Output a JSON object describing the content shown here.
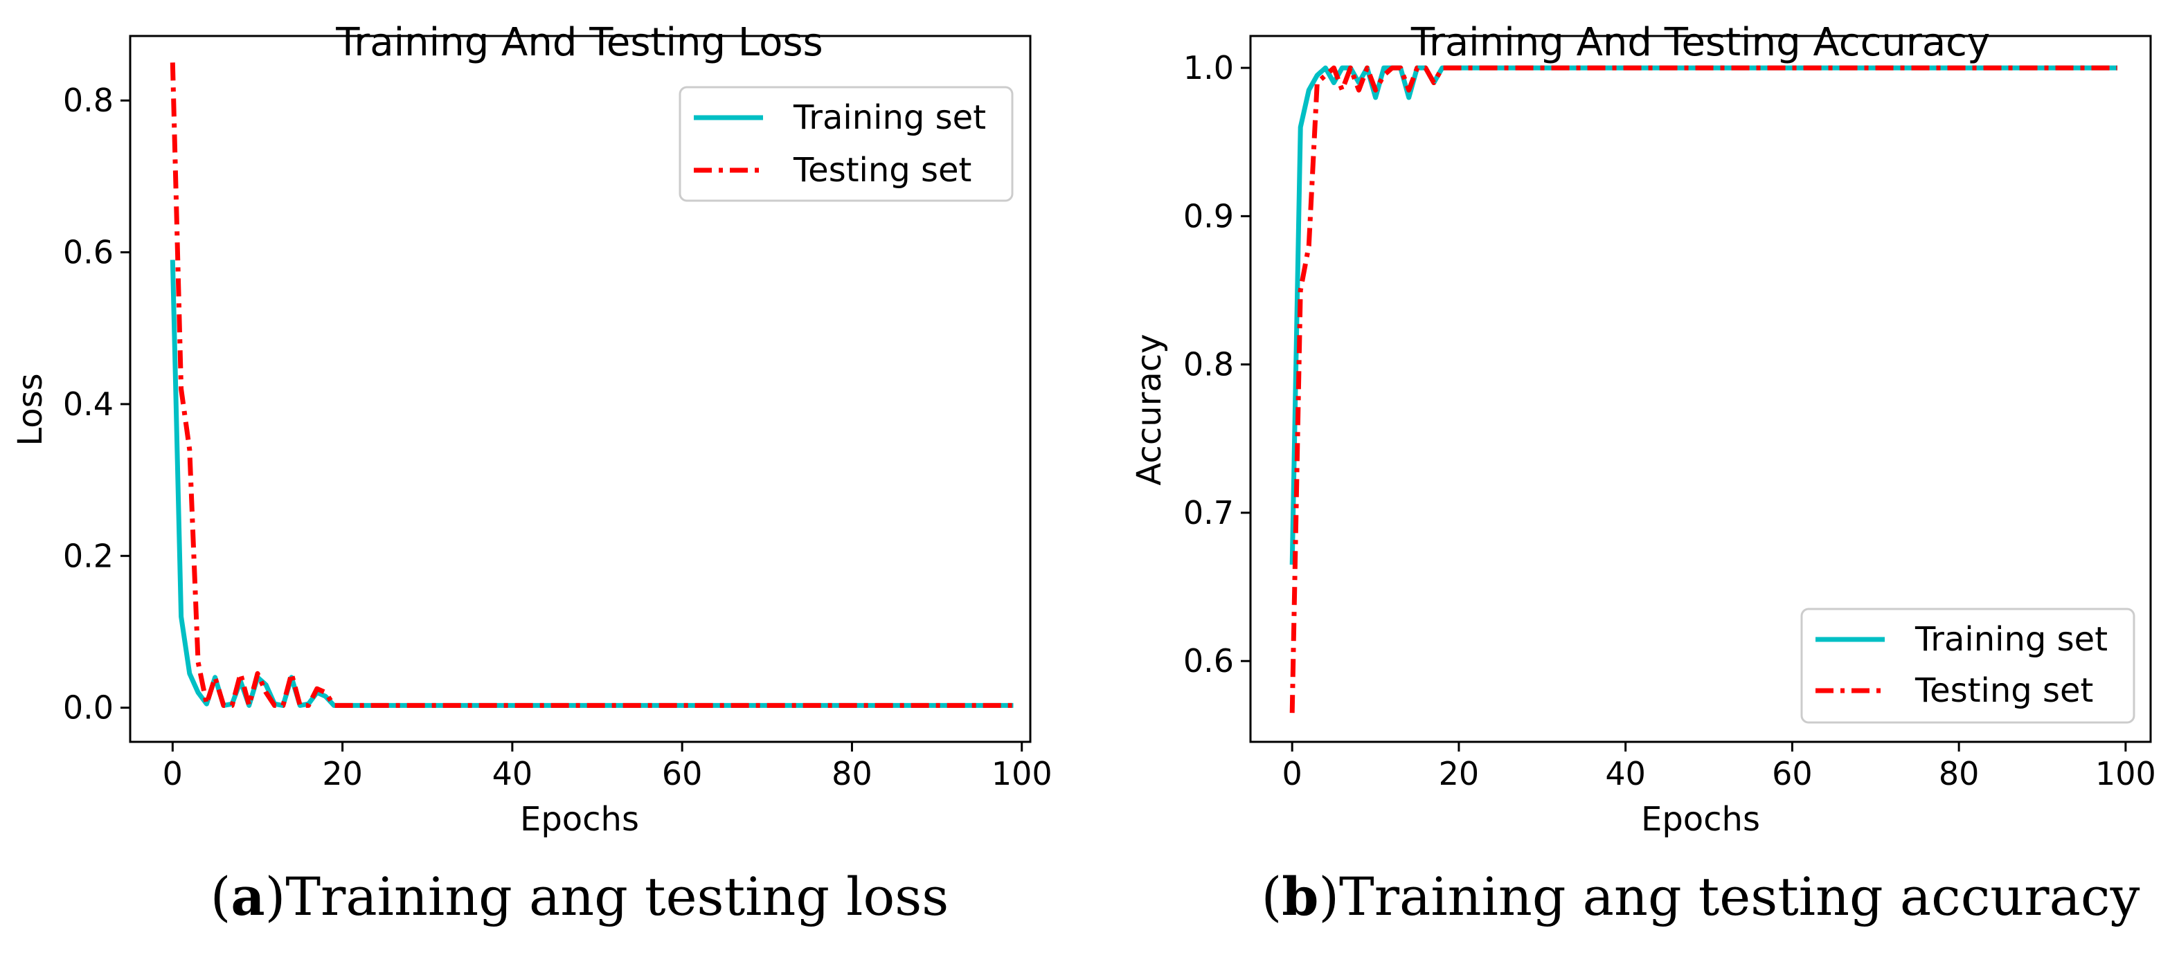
{
  "chart_data": [
    {
      "type": "line",
      "title": "Training And Testing Loss",
      "xlabel": "Epochs",
      "ylabel": "Loss",
      "xlim": [
        -5,
        101
      ],
      "ylim": [
        -0.045,
        0.885
      ],
      "xticks": [
        0,
        20,
        40,
        60,
        80,
        100
      ],
      "yticks": [
        0.0,
        0.2,
        0.4,
        0.6,
        0.8
      ],
      "ytick_labels": [
        "0.0",
        "0.2",
        "0.4",
        "0.6",
        "0.8"
      ],
      "legend_position": "top-right",
      "caption": {
        "letter": "a",
        "text": "Training ang testing loss"
      },
      "series": [
        {
          "name": "Training set",
          "color": "#00BFC4",
          "style": "solid",
          "head": [
            0.59,
            0.12,
            0.045,
            0.02,
            0.005,
            0.04,
            0.003,
            0.005,
            0.035,
            0.003,
            0.04,
            0.03,
            0.005,
            0.003,
            0.04,
            0.003,
            0.005,
            0.02,
            0.015,
            0.003
          ],
          "tail_value": 0.003,
          "length": 100
        },
        {
          "name": "Testing set",
          "color": "#FF0000",
          "style": "dashdot",
          "head": [
            0.85,
            0.42,
            0.34,
            0.06,
            0.005,
            0.04,
            0.003,
            0.003,
            0.045,
            0.003,
            0.045,
            0.02,
            0.003,
            0.003,
            0.045,
            0.003,
            0.003,
            0.025,
            0.02,
            0.003
          ],
          "tail_value": 0.003,
          "length": 100
        }
      ]
    },
    {
      "type": "line",
      "title": "Training And Testing Accuracy",
      "xlabel": "Epochs",
      "ylabel": "Accuracy",
      "xlim": [
        -5,
        103
      ],
      "ylim": [
        0.5455,
        1.0215
      ],
      "xticks": [
        0,
        20,
        40,
        60,
        80,
        100
      ],
      "yticks": [
        0.6,
        0.7,
        0.8,
        0.9,
        1.0
      ],
      "ytick_labels": [
        "0.6",
        "0.7",
        "0.8",
        "0.9",
        "1.0"
      ],
      "legend_position": "lower-right",
      "caption": {
        "letter": "b",
        "text": "Training ang testing accuracy"
      },
      "series": [
        {
          "name": "Training set",
          "color": "#00BFC4",
          "style": "solid",
          "head": [
            0.665,
            0.96,
            0.985,
            0.995,
            1.0,
            0.99,
            1.0,
            1.0,
            0.99,
            1.0,
            0.98,
            1.0,
            1.0,
            1.0,
            0.98,
            1.0,
            1.0,
            0.99,
            1.0,
            1.0
          ],
          "tail_value": 1.0,
          "length": 100
        },
        {
          "name": "Testing set",
          "color": "#FF0000",
          "style": "dashdot",
          "head": [
            0.565,
            0.85,
            0.88,
            0.99,
            0.995,
            1.0,
            0.985,
            1.0,
            0.985,
            1.0,
            0.985,
            0.995,
            1.0,
            1.0,
            0.985,
            1.0,
            1.0,
            0.99,
            1.0,
            1.0
          ],
          "tail_value": 1.0,
          "length": 100
        }
      ]
    }
  ]
}
